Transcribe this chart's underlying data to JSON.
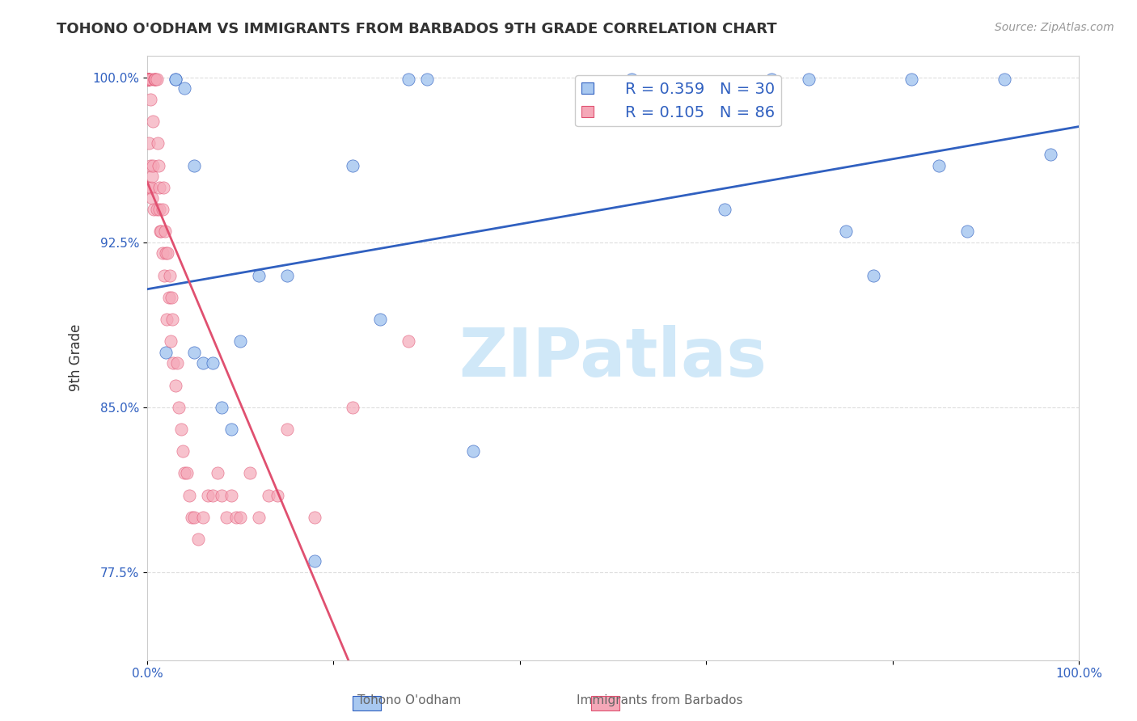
{
  "title": "TOHONO O'ODHAM VS IMMIGRANTS FROM BARBADOS 9TH GRADE CORRELATION CHART",
  "source": "Source: ZipAtlas.com",
  "xlabel": "",
  "ylabel": "9th Grade",
  "blue_label": "Tohono O'odham",
  "pink_label": "Immigrants from Barbados",
  "blue_R": 0.359,
  "blue_N": 30,
  "pink_R": 0.105,
  "pink_N": 86,
  "blue_color": "#a8c8f0",
  "pink_color": "#f5a8b8",
  "blue_line_color": "#3060c0",
  "pink_line_color": "#e05070",
  "legend_text_color": "#3060c0",
  "xlim": [
    0.0,
    1.0
  ],
  "ylim": [
    0.735,
    1.01
  ],
  "yticks": [
    0.775,
    0.85,
    0.925,
    1.0
  ],
  "ytick_labels": [
    "77.5%",
    "85.0%",
    "92.5%",
    "100.0%"
  ],
  "xticks": [
    0.0,
    0.2,
    0.4,
    0.6,
    0.8,
    1.0
  ],
  "xtick_labels": [
    "0.0%",
    "",
    "",
    "",
    "",
    "100.0%"
  ],
  "blue_x": [
    0.02,
    0.03,
    0.03,
    0.04,
    0.05,
    0.05,
    0.06,
    0.07,
    0.08,
    0.09,
    0.1,
    0.12,
    0.15,
    0.18,
    0.22,
    0.25,
    0.28,
    0.3,
    0.35,
    0.52,
    0.62,
    0.67,
    0.71,
    0.75,
    0.78,
    0.82,
    0.85,
    0.88,
    0.92,
    0.97
  ],
  "blue_y": [
    0.875,
    0.999,
    0.999,
    0.995,
    0.96,
    0.875,
    0.87,
    0.87,
    0.85,
    0.84,
    0.88,
    0.91,
    0.91,
    0.78,
    0.96,
    0.89,
    0.999,
    0.999,
    0.83,
    0.999,
    0.94,
    0.999,
    0.999,
    0.93,
    0.91,
    0.999,
    0.96,
    0.93,
    0.999,
    0.965
  ],
  "pink_x": [
    0.001,
    0.001,
    0.001,
    0.001,
    0.001,
    0.001,
    0.001,
    0.001,
    0.001,
    0.001,
    0.001,
    0.001,
    0.001,
    0.001,
    0.001,
    0.001,
    0.001,
    0.001,
    0.001,
    0.001,
    0.002,
    0.002,
    0.002,
    0.002,
    0.003,
    0.003,
    0.004,
    0.004,
    0.005,
    0.005,
    0.006,
    0.006,
    0.007,
    0.008,
    0.008,
    0.009,
    0.01,
    0.01,
    0.011,
    0.012,
    0.013,
    0.013,
    0.014,
    0.015,
    0.016,
    0.016,
    0.017,
    0.018,
    0.019,
    0.02,
    0.021,
    0.022,
    0.023,
    0.024,
    0.025,
    0.026,
    0.027,
    0.028,
    0.03,
    0.032,
    0.034,
    0.036,
    0.038,
    0.04,
    0.042,
    0.045,
    0.048,
    0.05,
    0.055,
    0.06,
    0.065,
    0.07,
    0.075,
    0.08,
    0.085,
    0.09,
    0.095,
    0.1,
    0.11,
    0.12,
    0.13,
    0.14,
    0.15,
    0.18,
    0.22,
    0.28
  ],
  "pink_y": [
    0.999,
    0.999,
    0.999,
    0.999,
    0.999,
    0.999,
    0.999,
    0.999,
    0.999,
    0.999,
    0.999,
    0.999,
    0.999,
    0.999,
    0.999,
    0.999,
    0.999,
    0.999,
    0.999,
    0.999,
    0.999,
    0.97,
    0.999,
    0.95,
    0.96,
    0.99,
    0.95,
    0.999,
    0.955,
    0.945,
    0.96,
    0.98,
    0.94,
    0.999,
    0.999,
    0.999,
    0.999,
    0.94,
    0.97,
    0.96,
    0.94,
    0.95,
    0.93,
    0.93,
    0.92,
    0.94,
    0.95,
    0.91,
    0.93,
    0.92,
    0.89,
    0.92,
    0.9,
    0.91,
    0.88,
    0.9,
    0.89,
    0.87,
    0.86,
    0.87,
    0.85,
    0.84,
    0.83,
    0.82,
    0.82,
    0.81,
    0.8,
    0.8,
    0.79,
    0.8,
    0.81,
    0.81,
    0.82,
    0.81,
    0.8,
    0.81,
    0.8,
    0.8,
    0.82,
    0.8,
    0.81,
    0.81,
    0.84,
    0.8,
    0.85,
    0.88
  ],
  "watermark": "ZIPatlas",
  "watermark_color": "#d0e8f8",
  "grid_color": "#dddddd"
}
